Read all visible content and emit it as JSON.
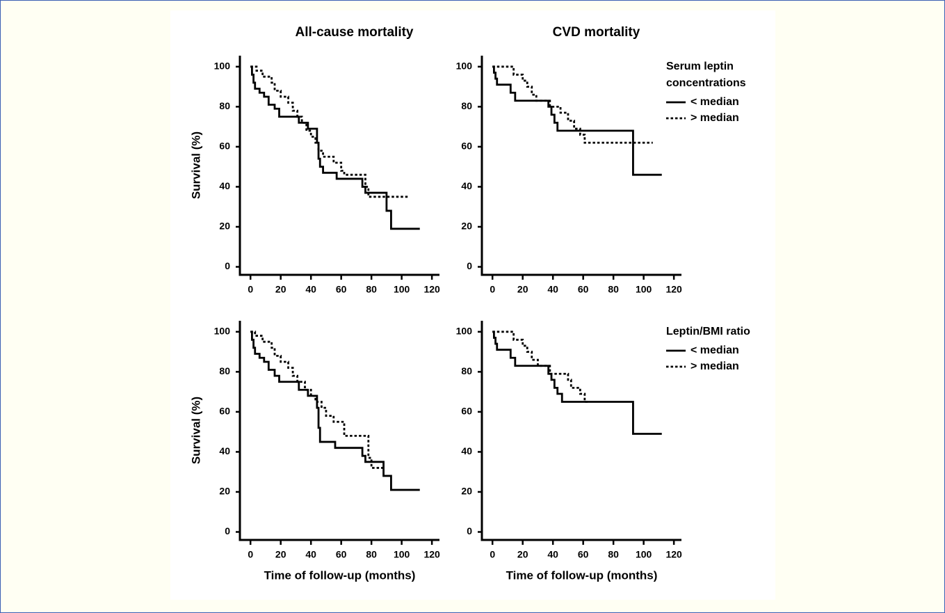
{
  "chart_data": [
    {
      "type": "line",
      "step": true,
      "title": "All-cause mortality",
      "ylabel": "Survival (%)",
      "xlim": [
        -7,
        125
      ],
      "ylim": [
        -4,
        105.5
      ],
      "xticks": [
        0,
        20,
        40,
        60,
        80,
        100,
        120
      ],
      "yticks": [
        0,
        20,
        40,
        60,
        80,
        100
      ],
      "series": [
        {
          "color": "#000000",
          "dash": "solid",
          "x": [
            0,
            1,
            2,
            3,
            6,
            9,
            12,
            16,
            19,
            32,
            38,
            44,
            45,
            46,
            48,
            57,
            74,
            76,
            90,
            93,
            112
          ],
          "values": [
            100,
            96,
            92,
            89,
            87,
            85,
            81,
            79,
            75,
            72,
            69,
            62,
            54,
            50,
            47,
            44,
            40,
            37,
            28,
            19,
            19
          ]
        },
        {
          "color": "#000000",
          "dash": "dotted",
          "x": [
            0,
            4,
            8,
            14,
            16,
            20,
            25,
            28,
            31,
            34,
            37,
            40,
            43,
            45,
            48,
            55,
            60,
            62,
            76,
            78,
            105
          ],
          "values": [
            100,
            98,
            95,
            92,
            88,
            85,
            82,
            78,
            75,
            72,
            68,
            65,
            62,
            58,
            55,
            52,
            48,
            46,
            40,
            35,
            35
          ]
        }
      ]
    },
    {
      "type": "line",
      "step": true,
      "title": "CVD mortality",
      "legend_title": "Serum leptin concentrations",
      "legend": "right",
      "xlim": [
        -7,
        125
      ],
      "ylim": [
        -4,
        105.5
      ],
      "xticks": [
        0,
        20,
        40,
        60,
        80,
        100,
        120
      ],
      "yticks": [
        0,
        20,
        40,
        60,
        80,
        100
      ],
      "series": [
        {
          "name": "< median",
          "color": "#000000",
          "dash": "solid",
          "x": [
            0,
            1,
            2,
            3,
            12,
            15,
            37,
            39,
            41,
            43,
            93,
            112
          ],
          "values": [
            100,
            97,
            94,
            91,
            87,
            83,
            80,
            76,
            72,
            68,
            46,
            46
          ]
        },
        {
          "name": "> median",
          "color": "#000000",
          "dash": "dotted",
          "x": [
            0,
            14,
            20,
            23,
            26,
            29,
            38,
            45,
            50,
            54,
            58,
            61,
            106
          ],
          "values": [
            100,
            96,
            93,
            90,
            86,
            83,
            80,
            77,
            73,
            69,
            66,
            62,
            62
          ]
        }
      ]
    },
    {
      "type": "line",
      "step": true,
      "ylabel": "Survival (%)",
      "xlabel": "Time of follow-up (months)",
      "xlim": [
        -7,
        125
      ],
      "ylim": [
        -4,
        105.5
      ],
      "xticks": [
        0,
        20,
        40,
        60,
        80,
        100,
        120
      ],
      "yticks": [
        0,
        20,
        40,
        60,
        80,
        100
      ],
      "series": [
        {
          "color": "#000000",
          "dash": "solid",
          "x": [
            0,
            1,
            2,
            3,
            6,
            9,
            12,
            16,
            19,
            32,
            38,
            44,
            45,
            46,
            56,
            74,
            76,
            88,
            93,
            112
          ],
          "values": [
            100,
            96,
            92,
            89,
            87,
            85,
            81,
            78,
            75,
            71,
            68,
            62,
            52,
            45,
            42,
            38,
            35,
            28,
            21,
            21
          ]
        },
        {
          "color": "#000000",
          "dash": "dotted",
          "x": [
            0,
            3,
            8,
            14,
            16,
            20,
            25,
            28,
            31,
            36,
            40,
            43,
            47,
            50,
            55,
            62,
            78,
            80,
            88
          ],
          "values": [
            100,
            98,
            95,
            92,
            88,
            85,
            82,
            78,
            75,
            71,
            68,
            65,
            62,
            58,
            55,
            48,
            37,
            32,
            32
          ]
        }
      ]
    },
    {
      "type": "line",
      "step": true,
      "xlabel": "Time of follow-up (months)",
      "legend_title": "Leptin/BMI ratio",
      "legend": "right",
      "xlim": [
        -7,
        125
      ],
      "ylim": [
        -4,
        105.5
      ],
      "xticks": [
        0,
        20,
        40,
        60,
        80,
        100,
        120
      ],
      "yticks": [
        0,
        20,
        40,
        60,
        80,
        100
      ],
      "series": [
        {
          "name": "< median",
          "color": "#000000",
          "dash": "solid",
          "x": [
            0,
            1,
            2,
            3,
            12,
            15,
            37,
            39,
            41,
            43,
            46,
            93,
            112
          ],
          "values": [
            100,
            97,
            94,
            91,
            87,
            83,
            79,
            76,
            72,
            69,
            65,
            49,
            49
          ]
        },
        {
          "name": "> median",
          "color": "#000000",
          "dash": "dotted",
          "x": [
            0,
            14,
            20,
            23,
            26,
            30,
            38,
            50,
            52,
            58,
            61,
            63
          ],
          "values": [
            100,
            96,
            93,
            90,
            86,
            83,
            79,
            76,
            72,
            69,
            65,
            65
          ]
        }
      ]
    }
  ]
}
